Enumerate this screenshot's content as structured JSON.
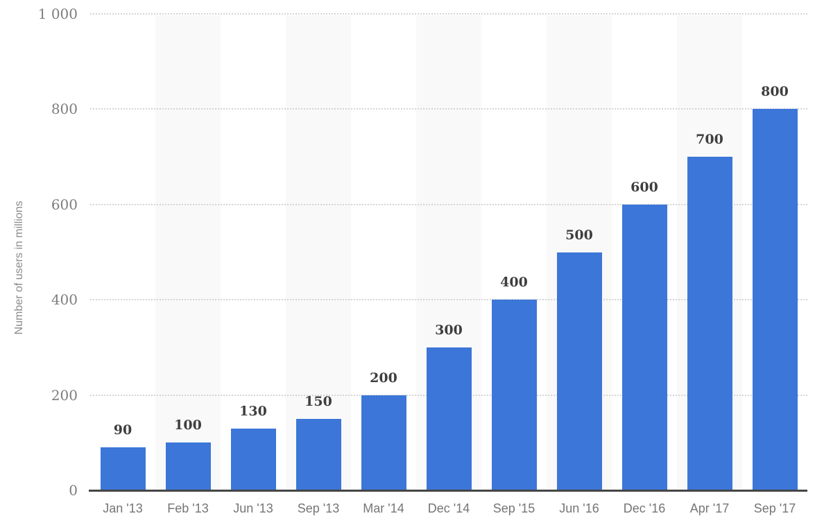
{
  "chart_data": {
    "type": "bar",
    "title": "",
    "xlabel": "",
    "ylabel": "Number of users in millions",
    "categories": [
      "Jan '13",
      "Feb '13",
      "Jun '13",
      "Sep '13",
      "Mar '14",
      "Dec '14",
      "Sep '15",
      "Jun '16",
      "Dec '16",
      "Apr '17",
      "Sep '17"
    ],
    "values": [
      90,
      100,
      130,
      150,
      200,
      300,
      400,
      500,
      600,
      700,
      800
    ],
    "value_labels": [
      "90",
      "100",
      "130",
      "150",
      "200",
      "300",
      "400",
      "500",
      "600",
      "700",
      "800"
    ],
    "ylim": [
      0,
      1000
    ],
    "yticks": [
      0,
      200,
      400,
      600,
      800,
      1000
    ],
    "ytick_labels": [
      "0",
      "200",
      "400",
      "600",
      "800",
      "1 000"
    ],
    "grid": "horizontal-dotted",
    "legend": "none",
    "alternating_column_bands": true,
    "colors": {
      "bar": "#3c76d8",
      "column_band": "#f9f9f9",
      "gridline": "#d4d4d4",
      "axis_line": "#454545",
      "value_label": "#3e3e3e",
      "y_tick_label": "#7d7d7d",
      "x_tick_label": "#757575",
      "y_axis_title": "#8c8c8c",
      "background": "#ffffff"
    }
  }
}
